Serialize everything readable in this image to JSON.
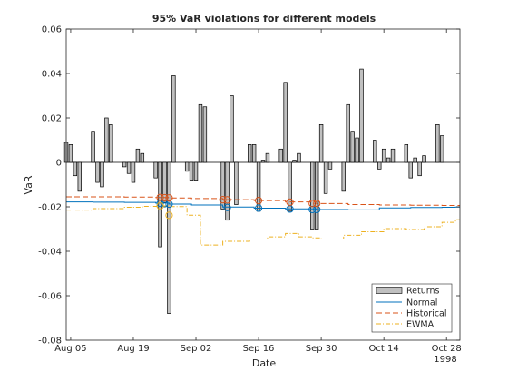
{
  "chart_data": {
    "type": "bar",
    "title": "95% VaR violations for different models",
    "xlabel": "Date",
    "ylabel": "VaR",
    "ylim": [
      -0.08,
      0.06
    ],
    "yticks": [
      -0.08,
      -0.06,
      -0.04,
      -0.02,
      0,
      0.02,
      0.04,
      0.06
    ],
    "ytick_labels": [
      "-0.08",
      "-0.06",
      "-0.04",
      "-0.02",
      "0",
      "0.02",
      "0.04",
      "0.06"
    ],
    "xlim": [
      "1998-08-04",
      "1998-10-31"
    ],
    "xticks": [
      "1998-08-05",
      "1998-08-19",
      "1998-09-02",
      "1998-09-16",
      "1998-09-30",
      "1998-10-14",
      "1998-10-28"
    ],
    "xtick_labels": [
      "Aug 05",
      "Aug 19",
      "Sep 02",
      "Sep 16",
      "Sep 30",
      "Oct 14",
      "Oct 28"
    ],
    "x_secondary_label": "1998",
    "grid": false,
    "legend_position": "bottom-right",
    "colors": {
      "returns_fill": "#c0c0c0",
      "returns_edge": "#000000",
      "normal": "#0072bd",
      "historical": "#d95319",
      "ewma": "#edb120"
    },
    "returns": {
      "name": "Returns",
      "dates": [
        "1998-08-04",
        "1998-08-05",
        "1998-08-06",
        "1998-08-07",
        "1998-08-10",
        "1998-08-11",
        "1998-08-12",
        "1998-08-13",
        "1998-08-14",
        "1998-08-17",
        "1998-08-18",
        "1998-08-19",
        "1998-08-20",
        "1998-08-21",
        "1998-08-24",
        "1998-08-25",
        "1998-08-26",
        "1998-08-27",
        "1998-08-28",
        "1998-08-31",
        "1998-09-01",
        "1998-09-02",
        "1998-09-03",
        "1998-09-04",
        "1998-09-08",
        "1998-09-09",
        "1998-09-10",
        "1998-09-11",
        "1998-09-14",
        "1998-09-15",
        "1998-09-16",
        "1998-09-17",
        "1998-09-18",
        "1998-09-21",
        "1998-09-22",
        "1998-09-23",
        "1998-09-24",
        "1998-09-25",
        "1998-09-28",
        "1998-09-29",
        "1998-09-30",
        "1998-10-01",
        "1998-10-02",
        "1998-10-05",
        "1998-10-06",
        "1998-10-07",
        "1998-10-08",
        "1998-10-09",
        "1998-10-12",
        "1998-10-13",
        "1998-10-14",
        "1998-10-15",
        "1998-10-16",
        "1998-10-19",
        "1998-10-20",
        "1998-10-21",
        "1998-10-22",
        "1998-10-23",
        "1998-10-26",
        "1998-10-27",
        "1998-10-28",
        "1998-10-29",
        "1998-10-30"
      ],
      "values": [
        0.009,
        0.008,
        -0.006,
        -0.013,
        0.014,
        -0.009,
        -0.011,
        0.02,
        0.017,
        -0.002,
        -0.005,
        -0.009,
        0.006,
        0.004,
        -0.007,
        -0.038,
        -0.018,
        -0.068,
        0.039,
        -0.004,
        -0.008,
        -0.008,
        0.026,
        0.025,
        -0.021,
        -0.026,
        0.03,
        -0.019,
        0.008,
        0.008,
        -0.022,
        0.001,
        0.004,
        0.006,
        0.036,
        -0.022,
        0.001,
        0.004,
        -0.03,
        -0.03,
        0.017,
        -0.014,
        -0.003,
        -0.013,
        0.026,
        0.014,
        0.011,
        0.042,
        0.01,
        -0.003,
        0.006,
        0.002,
        0.006,
        0.008,
        -0.007,
        0.002,
        -0.006,
        0.003,
        0.017,
        0.012,
        0.0,
        0.0,
        0.0
      ]
    },
    "series": [
      {
        "name": "Normal",
        "dates": [
          "1998-08-04",
          "1998-08-10",
          "1998-08-17",
          "1998-08-24",
          "1998-08-27",
          "1998-09-01",
          "1998-09-08",
          "1998-09-15",
          "1998-09-22",
          "1998-09-29",
          "1998-10-06",
          "1998-10-13",
          "1998-10-20",
          "1998-10-27",
          "1998-10-30"
        ],
        "values": [
          -0.0178,
          -0.0179,
          -0.018,
          -0.0183,
          -0.0188,
          -0.0192,
          -0.0201,
          -0.0206,
          -0.0209,
          -0.0212,
          -0.0214,
          -0.0205,
          -0.0203,
          -0.0202,
          -0.0201
        ]
      },
      {
        "name": "Historical",
        "dates": [
          "1998-08-04",
          "1998-08-10",
          "1998-08-17",
          "1998-08-24",
          "1998-08-27",
          "1998-09-01",
          "1998-09-08",
          "1998-09-15",
          "1998-09-22",
          "1998-09-29",
          "1998-10-06",
          "1998-10-13",
          "1998-10-20",
          "1998-10-27",
          "1998-10-30"
        ],
        "values": [
          -0.0155,
          -0.0155,
          -0.0156,
          -0.0158,
          -0.016,
          -0.0163,
          -0.0168,
          -0.0172,
          -0.0178,
          -0.0185,
          -0.019,
          -0.0192,
          -0.0193,
          -0.0194,
          -0.0194
        ]
      },
      {
        "name": "EWMA",
        "dates": [
          "1998-08-04",
          "1998-08-10",
          "1998-08-17",
          "1998-08-21",
          "1998-08-25",
          "1998-08-27",
          "1998-08-31",
          "1998-09-03",
          "1998-09-08",
          "1998-09-14",
          "1998-09-18",
          "1998-09-22",
          "1998-09-25",
          "1998-09-28",
          "1998-09-30",
          "1998-10-05",
          "1998-10-09",
          "1998-10-14",
          "1998-10-19",
          "1998-10-23",
          "1998-10-27",
          "1998-10-30"
        ],
        "values": [
          -0.0215,
          -0.0208,
          -0.0202,
          -0.0198,
          -0.0196,
          -0.0199,
          -0.0238,
          -0.0372,
          -0.0355,
          -0.0345,
          -0.0335,
          -0.032,
          -0.0335,
          -0.034,
          -0.0345,
          -0.0328,
          -0.0312,
          -0.0298,
          -0.0302,
          -0.029,
          -0.027,
          -0.0258
        ]
      }
    ],
    "violations": [
      {
        "model": "Normal",
        "marker": "circle",
        "dates": [
          "1998-08-25",
          "1998-08-26",
          "1998-08-27",
          "1998-09-09",
          "1998-09-16",
          "1998-09-23",
          "1998-09-28",
          "1998-09-29"
        ],
        "values": [
          -0.0184,
          -0.0186,
          -0.0188,
          -0.0203,
          -0.0206,
          -0.021,
          -0.0212,
          -0.0212
        ]
      },
      {
        "model": "Historical",
        "marker": "circle",
        "dates": [
          "1998-08-25",
          "1998-08-26",
          "1998-08-27",
          "1998-09-08",
          "1998-09-09",
          "1998-09-16",
          "1998-09-23",
          "1998-09-28",
          "1998-09-29"
        ],
        "values": [
          -0.0158,
          -0.0159,
          -0.016,
          -0.0168,
          -0.0169,
          -0.0172,
          -0.0179,
          -0.0185,
          -0.0185
        ]
      },
      {
        "model": "EWMA",
        "marker": "circle",
        "dates": [
          "1998-08-25",
          "1998-08-27"
        ],
        "values": [
          -0.0196,
          -0.0238
        ]
      }
    ]
  }
}
